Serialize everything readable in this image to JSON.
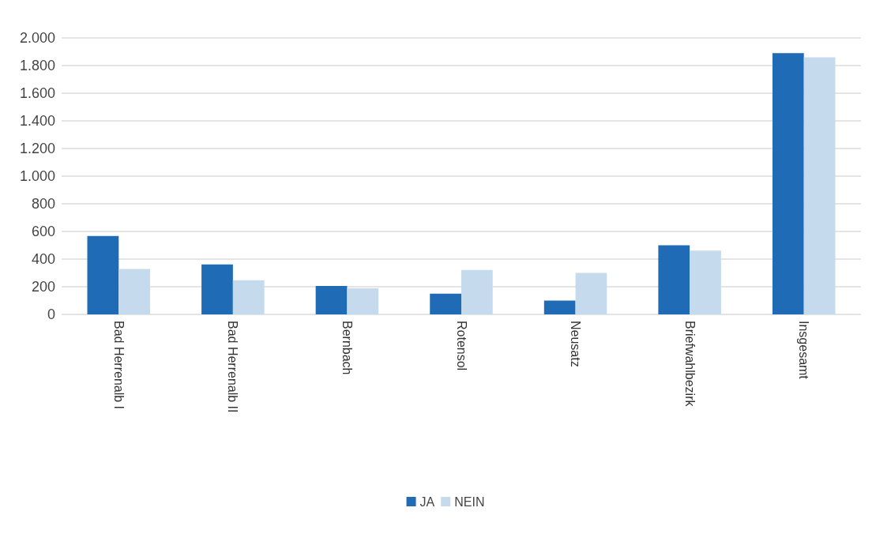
{
  "chart_data": {
    "type": "bar",
    "categories": [
      "Bad Herrenalb I",
      "Bad Herrenalb II",
      "Bernbach",
      "Rotensol",
      "Neusatz",
      "Briefwahlbezirk",
      "Insgesamt"
    ],
    "series": [
      {
        "name": "JA",
        "color": "#1f6bb5",
        "values": [
          567,
          361,
          206,
          150,
          100,
          500,
          1890
        ]
      },
      {
        "name": "NEIN",
        "color": "#c6daee",
        "values": [
          328,
          247,
          189,
          322,
          300,
          461,
          1860
        ]
      }
    ],
    "ylim": [
      0,
      2000
    ],
    "yticks": [
      0,
      {
        "value": 200,
        "label": "200"
      },
      {
        "value": 400,
        "label": "400"
      },
      {
        "value": 600,
        "label": "600"
      },
      {
        "value": 800,
        "label": "800"
      },
      {
        "value": 1000,
        "label": "1.000"
      },
      {
        "value": 1200,
        "label": "1.200"
      },
      {
        "value": 1400,
        "label": "1.400"
      },
      {
        "value": 1600,
        "label": "1.600"
      },
      {
        "value": 1800,
        "label": "1.800"
      },
      {
        "value": 2000,
        "label": "2.000"
      }
    ],
    "grid": "y",
    "legend": "bottom"
  }
}
